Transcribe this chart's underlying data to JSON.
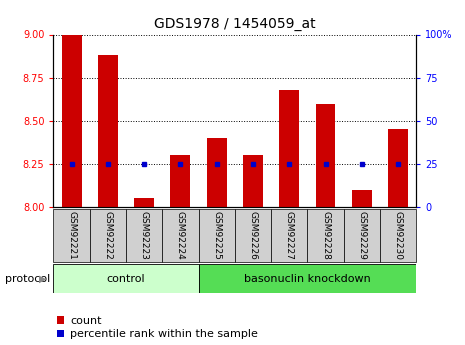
{
  "title": "GDS1978 / 1454059_at",
  "samples": [
    "GSM92221",
    "GSM92222",
    "GSM92223",
    "GSM92224",
    "GSM92225",
    "GSM92226",
    "GSM92227",
    "GSM92228",
    "GSM92229",
    "GSM92230"
  ],
  "counts": [
    9.0,
    8.88,
    8.05,
    8.3,
    8.4,
    8.3,
    8.68,
    8.6,
    8.1,
    8.45
  ],
  "percentile_ranks": [
    25,
    25,
    25,
    25,
    25,
    25,
    25,
    25,
    25,
    25
  ],
  "ylim_left": [
    8.0,
    9.0
  ],
  "ylim_right": [
    0,
    100
  ],
  "yticks_left": [
    8.0,
    8.25,
    8.5,
    8.75,
    9.0
  ],
  "yticks_right": [
    0,
    25,
    50,
    75,
    100
  ],
  "ytick_labels_right": [
    "0",
    "25",
    "50",
    "75",
    "100%"
  ],
  "control_samples_idx": [
    0,
    1,
    2,
    3
  ],
  "knockdown_samples_idx": [
    4,
    5,
    6,
    7,
    8,
    9
  ],
  "control_label": "control",
  "knockdown_label": "basonuclin knockdown",
  "protocol_label": "protocol",
  "bar_color": "#cc0000",
  "dot_color": "#0000cc",
  "tick_box_color": "#d0d0d0",
  "control_bg": "#ccffcc",
  "knockdown_bg": "#55dd55",
  "bar_width": 0.55,
  "grid_color": "black",
  "title_fontsize": 10,
  "tick_fontsize": 7,
  "sample_fontsize": 6.5,
  "proto_fontsize": 8,
  "legend_fontsize": 8
}
